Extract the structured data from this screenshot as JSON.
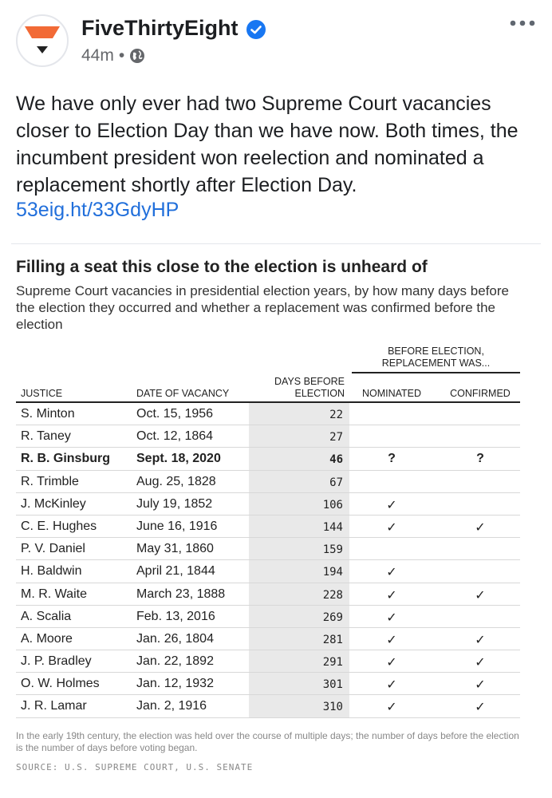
{
  "post": {
    "page_name": "FiveThirtyEight",
    "time": "44m",
    "separator": "•",
    "text": "We have only ever had two Supreme Court vacancies closer to Election Day than we have now. Both times, the incumbent president won reelection and nominated a replacement shortly after Election Day.",
    "link": "53eig.ht/33GdyHP"
  },
  "colors": {
    "brand_orange": "#f26a36",
    "verified_blue": "#1877f2",
    "link_blue": "#216fdb",
    "days_bg": "#e9e9e9"
  },
  "graphic": {
    "title": "Filling a seat this close to the election is unheard of",
    "subtitle": "Supreme Court vacancies in presidential election years, by how many days before the election they occurred and whether a replacement was confirmed before the election",
    "group_header": "BEFORE ELECTION, REPLACEMENT WAS...",
    "headers": {
      "justice": "JUSTICE",
      "date": "DATE OF VACANCY",
      "days": "DAYS BEFORE ELECTION",
      "nominated": "NOMINATED",
      "confirmed": "CONFIRMED"
    },
    "rows": [
      {
        "justice": "S. Minton",
        "date": "Oct. 15, 1956",
        "days": "22",
        "nominated": "",
        "confirmed": ""
      },
      {
        "justice": "R. Taney",
        "date": "Oct. 12, 1864",
        "days": "27",
        "nominated": "",
        "confirmed": ""
      },
      {
        "justice": "R. B. Ginsburg",
        "date": "Sept. 18, 2020",
        "days": "46",
        "nominated": "?",
        "confirmed": "?",
        "bold": true
      },
      {
        "justice": "R. Trimble",
        "date": "Aug. 25, 1828",
        "days": "67",
        "nominated": "",
        "confirmed": ""
      },
      {
        "justice": "J. McKinley",
        "date": "July 19, 1852",
        "days": "106",
        "nominated": "✓",
        "confirmed": ""
      },
      {
        "justice": "C. E. Hughes",
        "date": "June 16, 1916",
        "days": "144",
        "nominated": "✓",
        "confirmed": "✓"
      },
      {
        "justice": "P. V. Daniel",
        "date": "May 31, 1860",
        "days": "159",
        "nominated": "",
        "confirmed": ""
      },
      {
        "justice": "H. Baldwin",
        "date": "April 21, 1844",
        "days": "194",
        "nominated": "✓",
        "confirmed": ""
      },
      {
        "justice": "M. R. Waite",
        "date": "March 23, 1888",
        "days": "228",
        "nominated": "✓",
        "confirmed": "✓"
      },
      {
        "justice": "A. Scalia",
        "date": "Feb. 13, 2016",
        "days": "269",
        "nominated": "✓",
        "confirmed": ""
      },
      {
        "justice": "A. Moore",
        "date": "Jan. 26, 1804",
        "days": "281",
        "nominated": "✓",
        "confirmed": "✓"
      },
      {
        "justice": "J. P. Bradley",
        "date": "Jan. 22, 1892",
        "days": "291",
        "nominated": "✓",
        "confirmed": "✓"
      },
      {
        "justice": "O. W. Holmes",
        "date": "Jan. 12, 1932",
        "days": "301",
        "nominated": "✓",
        "confirmed": "✓"
      },
      {
        "justice": "J. R. Lamar",
        "date": "Jan. 2, 1916",
        "days": "310",
        "nominated": "✓",
        "confirmed": "✓"
      }
    ],
    "footnote": "In the early 19th century, the election was held over the course of multiple days; the number of days before the election is the number of days before voting began.",
    "source": "SOURCE: U.S. SUPREME COURT, U.S. SENATE"
  }
}
